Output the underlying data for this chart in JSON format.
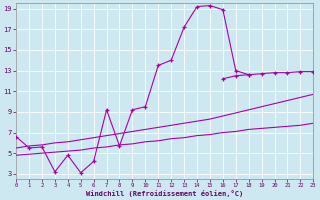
{
  "xlabel": "Windchill (Refroidissement éolien,°C)",
  "bg_color": "#cde8f0",
  "grid_color": "#ffffff",
  "line_color": "#aa00aa",
  "xmin": 0,
  "xmax": 23,
  "ymin": 2.5,
  "ymax": 19.5,
  "yticks": [
    3,
    5,
    7,
    9,
    11,
    13,
    15,
    17,
    19
  ],
  "xticks": [
    0,
    1,
    2,
    3,
    4,
    5,
    6,
    7,
    8,
    9,
    10,
    11,
    12,
    13,
    14,
    15,
    16,
    17,
    18,
    19,
    20,
    21,
    22,
    23
  ],
  "line1_x": [
    0,
    1,
    2,
    3,
    4,
    5,
    6,
    7,
    8,
    9,
    10,
    11,
    12,
    13,
    14,
    15,
    16,
    17,
    18
  ],
  "line1_y": [
    6.6,
    5.5,
    5.6,
    3.2,
    4.8,
    3.1,
    4.2,
    9.2,
    5.7,
    9.2,
    9.5,
    13.5,
    14.0,
    17.2,
    19.2,
    19.3,
    18.9,
    13.0,
    12.6
  ],
  "line2_x": [
    16,
    17,
    18,
    19,
    20,
    21,
    22,
    23
  ],
  "line2_y": [
    12.2,
    12.5,
    12.6,
    12.7,
    12.8,
    12.8,
    12.9,
    12.9
  ],
  "line3_x": [
    0,
    1,
    2,
    3,
    4,
    5,
    6,
    7,
    8,
    9,
    10,
    11,
    12,
    13,
    14,
    15,
    16,
    17,
    18,
    19,
    20,
    21,
    22,
    23
  ],
  "line3_y": [
    5.5,
    5.7,
    5.8,
    6.0,
    6.1,
    6.3,
    6.5,
    6.7,
    6.9,
    7.1,
    7.3,
    7.5,
    7.7,
    7.9,
    8.1,
    8.3,
    8.6,
    8.9,
    9.2,
    9.5,
    9.8,
    10.1,
    10.4,
    10.7
  ],
  "line4_x": [
    0,
    1,
    2,
    3,
    4,
    5,
    6,
    7,
    8,
    9,
    10,
    11,
    12,
    13,
    14,
    15,
    16,
    17,
    18,
    19,
    20,
    21,
    22,
    23
  ],
  "line4_y": [
    4.8,
    4.9,
    5.0,
    5.1,
    5.2,
    5.3,
    5.5,
    5.6,
    5.8,
    5.9,
    6.1,
    6.2,
    6.4,
    6.5,
    6.7,
    6.8,
    7.0,
    7.1,
    7.3,
    7.4,
    7.5,
    7.6,
    7.7,
    7.9
  ]
}
